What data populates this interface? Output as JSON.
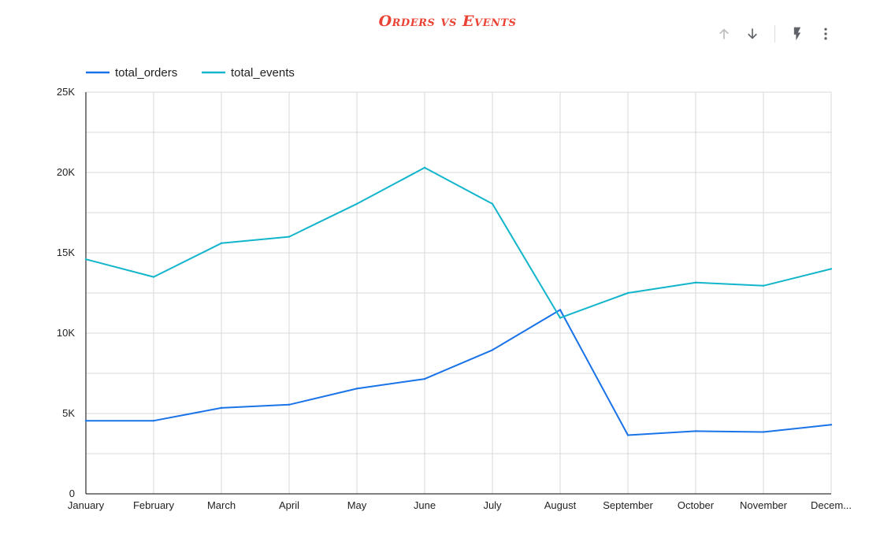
{
  "colors": {
    "title": "#ea4335",
    "orders": "#1a73e8",
    "events": "#12b5cb",
    "grid": "#d9d9d9",
    "axis": "#000000",
    "text": "#222222",
    "icon": "#5f6368",
    "icon_disabled": "#bdbdbd"
  },
  "toolbar": {
    "icons": [
      "arrow-up-icon",
      "arrow-down-icon",
      "bolt-icon",
      "more-vert-icon"
    ]
  },
  "chart_data": {
    "type": "line",
    "title": "Orders vs Events",
    "xlabel": "",
    "ylabel": "",
    "categories": [
      "January",
      "February",
      "March",
      "April",
      "May",
      "June",
      "July",
      "August",
      "September",
      "October",
      "November",
      "Decem..."
    ],
    "y_ticks": [
      0,
      5000,
      10000,
      15000,
      20000,
      25000
    ],
    "y_tick_labels": [
      "0",
      "5K",
      "10K",
      "15K",
      "20K",
      "25K"
    ],
    "ylim": [
      0,
      25000
    ],
    "grid": true,
    "legend_position": "top-left",
    "series": [
      {
        "name": "total_orders",
        "color_key": "orders",
        "values": [
          4550,
          4550,
          5350,
          5550,
          6550,
          7150,
          8950,
          11450,
          3650,
          3900,
          3850,
          4300
        ]
      },
      {
        "name": "total_events",
        "color_key": "events",
        "values": [
          14600,
          13500,
          15600,
          16000,
          18050,
          20300,
          18050,
          10950,
          12500,
          13150,
          12950,
          14000
        ]
      }
    ]
  }
}
